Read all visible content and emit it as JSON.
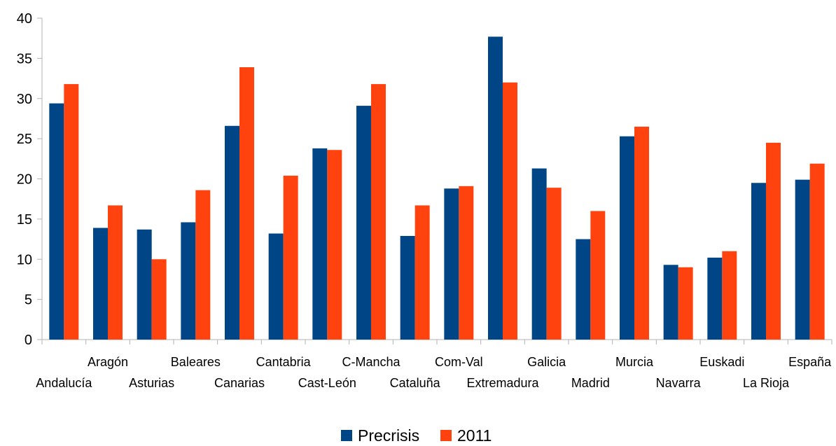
{
  "colors": {
    "precrisis": "#004586",
    "y2011": "#ff420e",
    "axis": "#b3b3b3"
  },
  "chart_data": {
    "type": "bar",
    "title": "",
    "xlabel": "",
    "ylabel": "",
    "ylim": [
      0,
      40
    ],
    "yticks": [
      0,
      5,
      10,
      15,
      20,
      25,
      30,
      35,
      40
    ],
    "grid": false,
    "legend": "bottom-center",
    "categories": [
      "Andalucía",
      "Aragón",
      "Asturias",
      "Baleares",
      "Canarias",
      "Cantabria",
      "Cast-León",
      "C-Mancha",
      "Cataluña",
      "Com-Val",
      "Extremadura",
      "Galicia",
      "Madrid",
      "Murcia",
      "Navarra",
      "Euskadi",
      "La Rioja",
      "España"
    ],
    "series": [
      {
        "name": "Precrisis",
        "values": [
          29.4,
          13.9,
          13.7,
          14.6,
          26.6,
          13.2,
          23.8,
          29.1,
          12.9,
          18.8,
          37.7,
          21.3,
          12.5,
          25.3,
          9.3,
          10.2,
          19.5,
          19.9
        ]
      },
      {
        "name": "2011",
        "values": [
          31.8,
          16.7,
          10.0,
          18.6,
          33.9,
          20.4,
          23.6,
          31.8,
          16.7,
          19.1,
          32.0,
          18.9,
          16.0,
          26.5,
          9.0,
          11.0,
          24.5,
          21.9
        ]
      }
    ]
  }
}
